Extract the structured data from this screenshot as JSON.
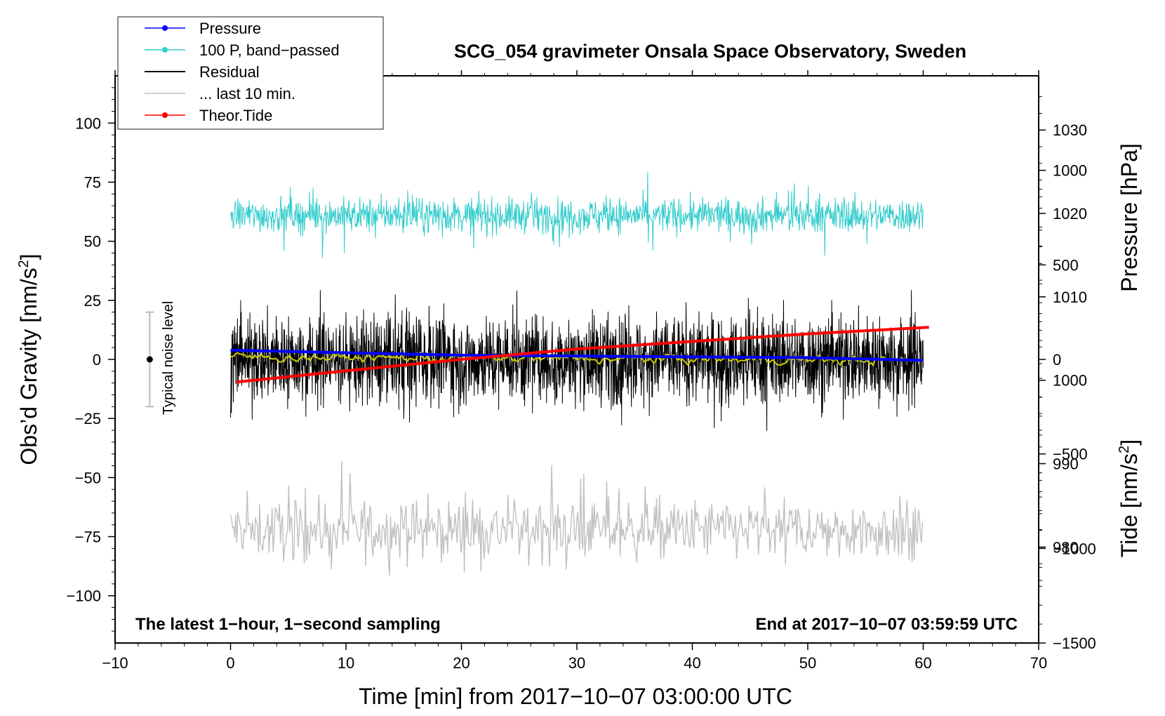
{
  "chart_data": {
    "type": "line",
    "title": "SCG_054 gravimeter Onsala Space Observatory, Sweden",
    "xlabel": "Time [min] from 2017−10−07 03:00:00 UTC",
    "ylabel": "Obs’d Gravity [nm/s",
    "ylabel_sup": "2",
    "ylabel_end": "]",
    "y2label_pressure": "Pressure [hPa]",
    "y2label_tide": "Tide [nm/s",
    "y2label_tide_sup": "2",
    "y2label_tide_end": "]",
    "xlim": [
      -10,
      70
    ],
    "ylim": [
      -120,
      120
    ],
    "pressure_axis_range": [
      968.5,
      1036.5
    ],
    "tide_axis_range": [
      -1500,
      1500
    ],
    "x_ticks": [
      -10,
      0,
      10,
      20,
      30,
      40,
      50,
      60,
      70
    ],
    "x_tick_labels": [
      "−10",
      "0",
      "10",
      "20",
      "30",
      "40",
      "50",
      "60",
      "70"
    ],
    "y_ticks": [
      100,
      75,
      50,
      25,
      0,
      -25,
      -50,
      -75,
      -100
    ],
    "y_tick_labels": [
      "100",
      "75",
      "50",
      "25",
      "0",
      "−25",
      "−50",
      "−75",
      "−100"
    ],
    "pressure_ticks": [
      1030,
      1020,
      1010,
      1000,
      990,
      980
    ],
    "pressure_tick_labels": [
      "1030",
      "1020",
      "1010",
      "1000",
      "990",
      "980"
    ],
    "tide_ticks": [
      1000,
      500,
      0,
      -500,
      -1000,
      -1500
    ],
    "tide_tick_labels": [
      "1000",
      "500",
      "0",
      "−500",
      "−1000",
      "−1500"
    ],
    "corner_left": "The latest 1−hour, 1−second sampling",
    "corner_right": "End at 2017−10−07 03:59:59 UTC",
    "noise_label": "Typical noise level",
    "noise_bar": {
      "x": -7,
      "center": 0,
      "low": -20,
      "high": 20
    },
    "legend": [
      {
        "label": "Pressure",
        "color": "#0000ff",
        "marker": true
      },
      {
        "label": "100 P, band−passed",
        "color": "#33cccc",
        "marker": true
      },
      {
        "label": "Residual",
        "color": "#000000",
        "marker": false
      },
      {
        "label": "... last 10 min.",
        "color": "#c0c0c0",
        "marker": false
      },
      {
        "label": "Theor.Tide",
        "color": "#ff0000",
        "marker": true
      }
    ],
    "series": [
      {
        "name": "Pressure",
        "axis": "pressure",
        "color": "#0000ff",
        "x": [
          0,
          10,
          20,
          30,
          40,
          50,
          60
        ],
        "values": [
          1003.6,
          1003.3,
          1003.0,
          1002.9,
          1002.8,
          1002.7,
          1002.4
        ]
      },
      {
        "name": "100 P, band−passed",
        "axis": "gravity",
        "color": "#33cccc",
        "x_range": [
          0,
          60
        ],
        "center": 61,
        "amplitude": 7,
        "note": "dense noise around center"
      },
      {
        "name": "Residual",
        "axis": "gravity",
        "color": "#000000",
        "x_range": [
          0,
          60
        ],
        "center": 0,
        "amplitude": 18,
        "note": "dense noise around center"
      },
      {
        "name": "Residual smoothed",
        "axis": "gravity",
        "color": "#cccc00",
        "x_range": [
          0,
          60
        ],
        "center": 0,
        "amplitude": 2
      },
      {
        "name": "... last 10 min.",
        "axis": "gravity",
        "color": "#c0c0c0",
        "x_range": [
          0,
          60
        ],
        "center": -72,
        "amplitude": 12,
        "note": "dense noise around center"
      },
      {
        "name": "Theor.Tide",
        "axis": "tide",
        "color": "#ff0000",
        "x": [
          0.5,
          10,
          20,
          30,
          40,
          50,
          60.5
        ],
        "values": [
          -120,
          -60,
          0,
          55,
          95,
          135,
          170
        ]
      }
    ],
    "colors": {
      "pressure": "#0000ff",
      "bandpassed": "#33cccc",
      "residual": "#000000",
      "smoothed": "#cccc00",
      "last10": "#c0c0c0",
      "tide": "#ff0000"
    }
  }
}
